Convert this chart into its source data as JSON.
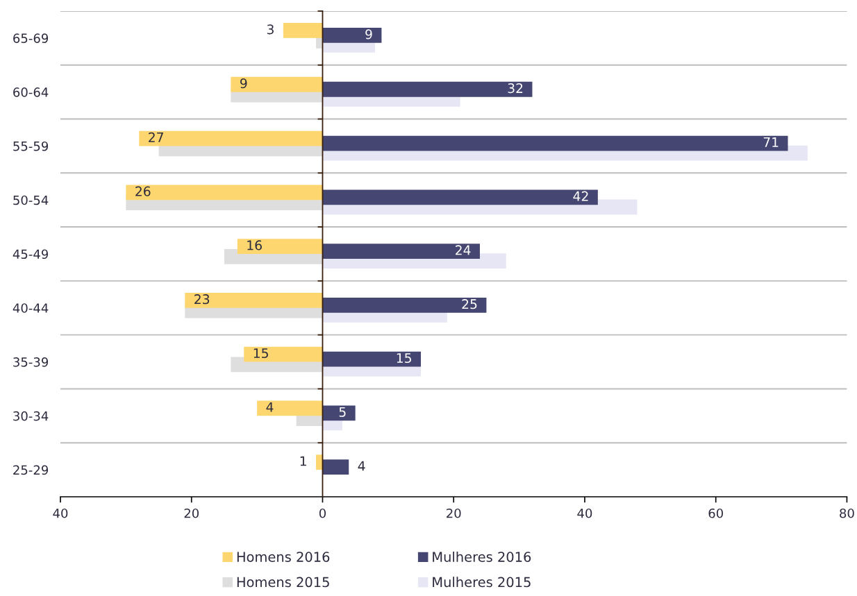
{
  "chart_data": {
    "type": "bar",
    "orientation": "horizontal",
    "categories": [
      "65-69",
      "60-64",
      "55-59",
      "50-54",
      "45-49",
      "40-44",
      "35-39",
      "30-34",
      "25-29"
    ],
    "series": [
      {
        "name": "Homens 2016",
        "color": "#fdd66f",
        "values": [
          -6,
          -14,
          -28,
          -30,
          -13,
          -21,
          -12,
          -10,
          -1
        ]
      },
      {
        "name": "Mulheres 2016",
        "color": "#464672",
        "values": [
          9,
          32,
          71,
          42,
          24,
          25,
          15,
          5,
          4
        ],
        "value_labels": [
          "9",
          "32",
          "71",
          "42",
          "24",
          "25",
          "15",
          "5",
          "4"
        ]
      },
      {
        "name": "Homens 2015",
        "color": "#dedede",
        "values": [
          -1,
          -14,
          -25,
          -30,
          -15,
          -21,
          -14,
          -4,
          null
        ]
      },
      {
        "name": "Mulheres 2015",
        "color": "#e6e6f5",
        "values": [
          8,
          21,
          74,
          48,
          28,
          19,
          15,
          3,
          null
        ]
      }
    ],
    "annotations": [
      {
        "text": "3",
        "x": -6,
        "y": "65-69"
      },
      {
        "text": "9",
        "x": -14,
        "y": "60-64"
      },
      {
        "text": "27",
        "x": -28,
        "y": "55-59"
      },
      {
        "text": "26",
        "x": -30,
        "y": "50-54"
      },
      {
        "text": "16",
        "x": -13,
        "y": "45-49"
      },
      {
        "text": "23",
        "x": -21,
        "y": "40-44"
      },
      {
        "text": "15",
        "x": -12,
        "y": "35-39"
      },
      {
        "text": "4",
        "x": -10,
        "y": "30-34"
      },
      {
        "text": "1",
        "x": -1,
        "y": "25-29"
      }
    ],
    "xlim": [
      -40,
      80
    ],
    "xticks": [
      {
        "value": -40,
        "label": "40"
      },
      {
        "value": -20,
        "label": "20"
      },
      0,
      20,
      40,
      60,
      80
    ],
    "grid": "y",
    "legend": "bottom"
  }
}
